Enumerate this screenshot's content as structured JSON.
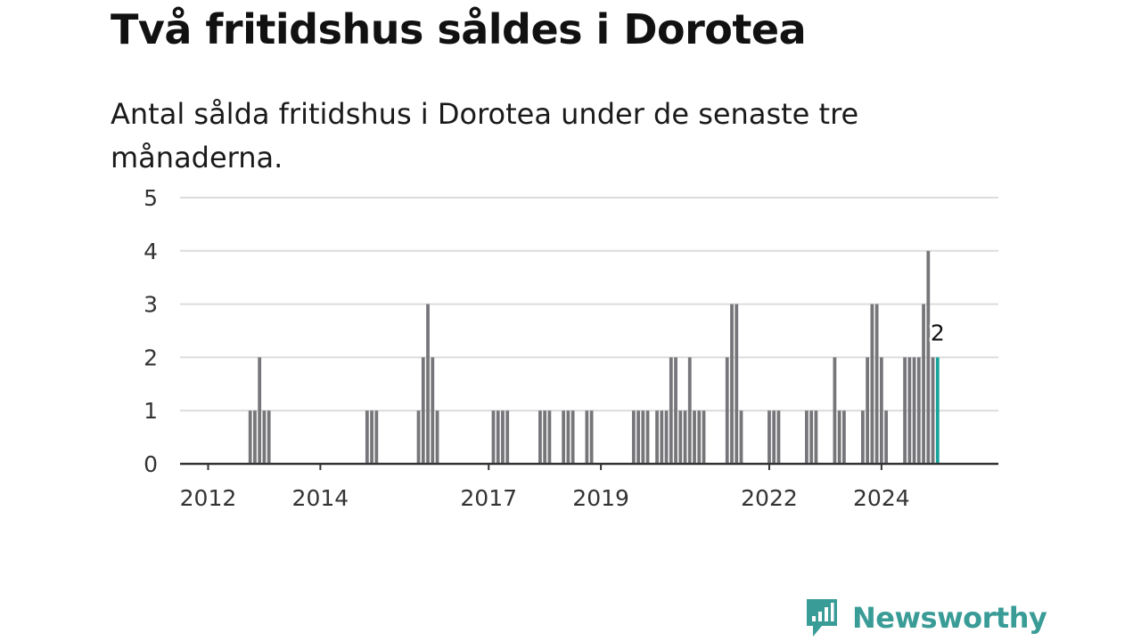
{
  "title": "Två fritidshus såldes i Dorotea",
  "subtitle": "Antal sålda fritidshus i Dorotea under de senaste tre månaderna.",
  "brand": {
    "name": "Newsworthy",
    "icon": "bar-chart-speech-bubble-icon",
    "color": "#3a9c97"
  },
  "colors": {
    "bar": "#76767a",
    "highlight": "#16a39b",
    "grid": "#dcdcdc",
    "axis": "#333333"
  },
  "chart_data": {
    "type": "bar",
    "xlabel": "",
    "ylabel": "",
    "ylim": [
      0,
      5
    ],
    "yticks": [
      0,
      1,
      2,
      3,
      4,
      5
    ],
    "xticks": [
      "2012",
      "2014",
      "2017",
      "2019",
      "2022",
      "2024"
    ],
    "xlim": [
      "2011-07",
      "2026-02"
    ],
    "grid": true,
    "highlight_label": "2",
    "categories": [
      "2012-10",
      "2012-11",
      "2012-12",
      "2013-01",
      "2013-02",
      "2013-03",
      "2014-11",
      "2014-12",
      "2015-01",
      "2015-10",
      "2015-11",
      "2015-12",
      "2016-01",
      "2016-02",
      "2017-02",
      "2017-03",
      "2017-04",
      "2017-05",
      "2017-12",
      "2018-01",
      "2018-02",
      "2018-05",
      "2018-06",
      "2018-07",
      "2018-10",
      "2018-11",
      "2019-08",
      "2019-09",
      "2019-10",
      "2019-11",
      "2020-01",
      "2020-02",
      "2020-03",
      "2020-04",
      "2020-05",
      "2020-06",
      "2020-07",
      "2020-08",
      "2020-09",
      "2020-10",
      "2020-11",
      "2021-04",
      "2021-05",
      "2021-06",
      "2021-07",
      "2022-01",
      "2022-02",
      "2022-03",
      "2022-09",
      "2022-10",
      "2022-11",
      "2023-03",
      "2023-04",
      "2023-05",
      "2023-09",
      "2023-10",
      "2023-11",
      "2023-12",
      "2024-01",
      "2024-02",
      "2024-06",
      "2024-07",
      "2024-08",
      "2024-09",
      "2024-10",
      "2024-11",
      "2024-12",
      "2025-01"
    ],
    "values": [
      1,
      1,
      2,
      1,
      1,
      0,
      1,
      1,
      1,
      1,
      2,
      3,
      2,
      1,
      1,
      1,
      1,
      1,
      1,
      1,
      1,
      1,
      1,
      1,
      1,
      1,
      1,
      1,
      1,
      1,
      1,
      1,
      1,
      2,
      2,
      1,
      1,
      2,
      1,
      1,
      1,
      2,
      3,
      3,
      1,
      1,
      1,
      1,
      1,
      1,
      1,
      2,
      1,
      1,
      1,
      2,
      3,
      3,
      2,
      1,
      2,
      2,
      2,
      2,
      3,
      4,
      2,
      2
    ]
  }
}
